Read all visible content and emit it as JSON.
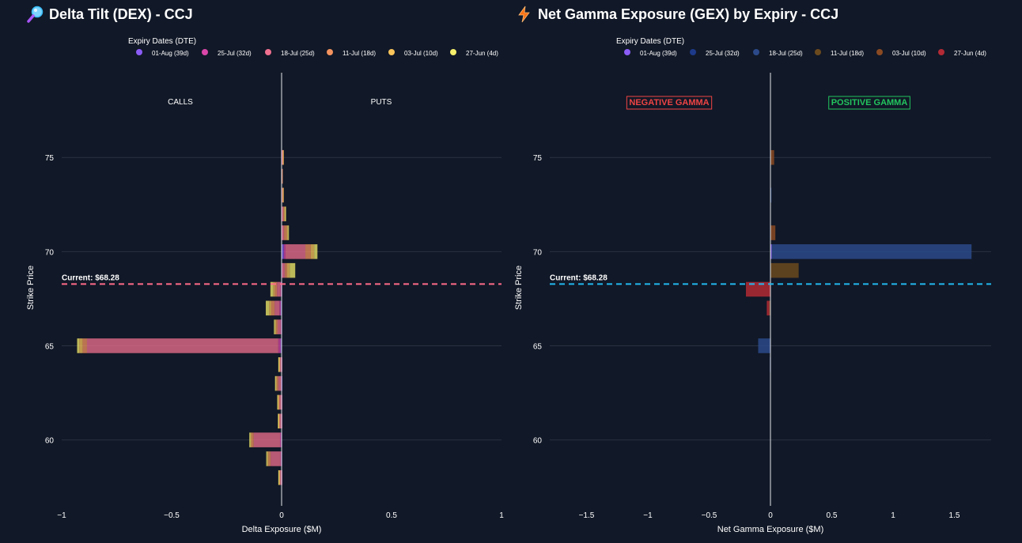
{
  "colors": {
    "background": "#111827",
    "grid": "#2a3242",
    "text": "#ffffff",
    "dex_current_line": "#ff6b8a",
    "gex_current_line": "#22b8f0",
    "negative_gamma": "#ef4444",
    "positive_gamma": "#22c55e"
  },
  "chart_data": [
    {
      "id": "dex",
      "type": "bar",
      "orientation": "horizontal",
      "stacked": true,
      "title": "Delta Tilt (DEX) - CCJ",
      "title_icon": "magnifier-icon",
      "legend_title": "Expiry Dates (DTE)",
      "legend_position": "top-center",
      "xlabel": "Delta Exposure ($M)",
      "ylabel": "Strike Price",
      "xlim": [
        -1.0,
        1.0
      ],
      "ylim": [
        56.5,
        79.5
      ],
      "xticks": [
        -1,
        -0.5,
        0,
        0.5,
        1
      ],
      "xtick_labels": [
        "−1",
        "−0.5",
        "0",
        "0.5",
        "1"
      ],
      "yticks": [
        60,
        65,
        70,
        75
      ],
      "ytick_labels": [
        "60",
        "65",
        "70",
        "75"
      ],
      "current_price": 68.28,
      "current_label": "Current: $68.28",
      "side_labels": {
        "left": "CALLS",
        "right": "PUTS"
      },
      "series": [
        {
          "name": "01-Aug (39d)",
          "color": "#8b5cf6"
        },
        {
          "name": "25-Jul (32d)",
          "color": "#d946a8"
        },
        {
          "name": "18-Jul (25d)",
          "color": "#f07090"
        },
        {
          "name": "11-Jul (18d)",
          "color": "#f4935f"
        },
        {
          "name": "03-Jul (10d)",
          "color": "#f9c45a"
        },
        {
          "name": "27-Jun (4d)",
          "color": "#f5ef6b"
        }
      ],
      "bar_opacity": 0.75,
      "bars": [
        {
          "strike": 75,
          "values": [
            0,
            0.001,
            0.003,
            0.002,
            0.001,
            0
          ]
        },
        {
          "strike": 74,
          "values": [
            0,
            0,
            0.001,
            0.001,
            0,
            0
          ]
        },
        {
          "strike": 73,
          "values": [
            0,
            0,
            0.003,
            0.003,
            0.001,
            0
          ]
        },
        {
          "strike": 72,
          "values": [
            0,
            0.001,
            0.006,
            0.006,
            0.003,
            0.001
          ]
        },
        {
          "strike": 71,
          "values": [
            0,
            0.001,
            0.01,
            0.012,
            0.006,
            0.003
          ]
        },
        {
          "strike": 70,
          "values": [
            0.01,
            0.008,
            0.09,
            0.025,
            0.015,
            0.015
          ]
        },
        {
          "strike": 69,
          "values": [
            0,
            0.003,
            0.012,
            0.01,
            0.012,
            0.025
          ]
        },
        {
          "strike": 68,
          "values": [
            -0.002,
            -0.004,
            -0.015,
            -0.01,
            -0.008,
            -0.012
          ]
        },
        {
          "strike": 67,
          "values": [
            -0.004,
            -0.006,
            -0.022,
            -0.015,
            -0.01,
            -0.015
          ]
        },
        {
          "strike": 66,
          "values": [
            -0.002,
            -0.003,
            -0.013,
            -0.007,
            -0.005,
            -0.005
          ]
        },
        {
          "strike": 65,
          "values": [
            -0.005,
            -0.01,
            -0.87,
            -0.02,
            -0.015,
            -0.01
          ]
        },
        {
          "strike": 64,
          "values": [
            0,
            -0.001,
            -0.006,
            -0.004,
            -0.002,
            -0.002
          ]
        },
        {
          "strike": 63,
          "values": [
            -0.001,
            -0.002,
            -0.012,
            -0.008,
            -0.004,
            -0.003
          ]
        },
        {
          "strike": 62,
          "values": [
            0,
            -0.001,
            -0.008,
            -0.005,
            -0.003,
            -0.003
          ]
        },
        {
          "strike": 61,
          "values": [
            0,
            -0.001,
            -0.008,
            -0.004,
            -0.002,
            -0.002
          ]
        },
        {
          "strike": 60,
          "values": [
            -0.002,
            -0.005,
            -0.12,
            -0.01,
            -0.005,
            -0.005
          ]
        },
        {
          "strike": 59,
          "values": [
            -0.002,
            -0.003,
            -0.045,
            -0.01,
            -0.006,
            -0.004
          ]
        },
        {
          "strike": 58,
          "values": [
            0,
            -0.001,
            -0.006,
            -0.004,
            -0.002,
            -0.002
          ]
        }
      ]
    },
    {
      "id": "gex",
      "type": "bar",
      "orientation": "horizontal",
      "stacked": true,
      "title": "Net Gamma Exposure (GEX) by Expiry - CCJ",
      "title_icon": "lightning-icon",
      "legend_title": "Expiry Dates (DTE)",
      "legend_position": "top-center",
      "xlabel": "Net Gamma Exposure ($M)",
      "ylabel": "Strike Price",
      "xlim": [
        -1.8,
        1.8
      ],
      "ylim": [
        56.5,
        79.5
      ],
      "xticks": [
        -1.5,
        -1,
        -0.5,
        0,
        0.5,
        1,
        1.5
      ],
      "xtick_labels": [
        "−1.5",
        "−1",
        "−0.5",
        "0",
        "0.5",
        "1",
        "1.5"
      ],
      "yticks": [
        60,
        65,
        70,
        75
      ],
      "ytick_labels": [
        "60",
        "65",
        "70",
        "75"
      ],
      "current_price": 68.28,
      "current_label": "Current: $68.28",
      "side_labels": {
        "left": "NEGATIVE GAMMA",
        "right": "POSITIVE GAMMA"
      },
      "series": [
        {
          "name": "01-Aug (39d)",
          "color": "#8b5cf6"
        },
        {
          "name": "25-Jul (32d)",
          "color": "#1e3a8a"
        },
        {
          "name": "18-Jul (25d)",
          "color": "#2c4a8a"
        },
        {
          "name": "11-Jul (18d)",
          "color": "#6b4a1e"
        },
        {
          "name": "03-Jul (10d)",
          "color": "#8b4a22"
        },
        {
          "name": "27-Jun (4d)",
          "color": "#b22a35"
        }
      ],
      "bar_opacity": 0.85,
      "bars": [
        {
          "strike": 75,
          "values": [
            0,
            0,
            0,
            0,
            0.03,
            0
          ]
        },
        {
          "strike": 73,
          "values": [
            0,
            0,
            0.005,
            0,
            0,
            0
          ]
        },
        {
          "strike": 71,
          "values": [
            0,
            0,
            0,
            0,
            0.04,
            0
          ]
        },
        {
          "strike": 70,
          "values": [
            0.01,
            0,
            1.63,
            0,
            0,
            0
          ]
        },
        {
          "strike": 69,
          "values": [
            0,
            0,
            0,
            0.23,
            0,
            0
          ]
        },
        {
          "strike": 68,
          "values": [
            0,
            0,
            0,
            0,
            0,
            -0.2
          ]
        },
        {
          "strike": 67,
          "values": [
            0,
            0,
            0,
            0,
            -0.01,
            -0.02
          ]
        },
        {
          "strike": 65,
          "values": [
            0,
            0,
            -0.1,
            0,
            0,
            0
          ]
        },
        {
          "strike": 64,
          "values": [
            0,
            0,
            -0.005,
            0,
            0,
            0
          ]
        }
      ]
    }
  ]
}
